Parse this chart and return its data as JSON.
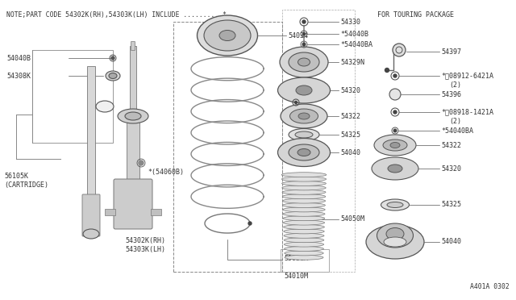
{
  "bg_color": "#ffffff",
  "line_color": "#555555",
  "text_color": "#333333",
  "note_text": "NOTE;PART CODE 54302K(RH),54303K(LH) INCLUDE ......... *",
  "touring_text": "FOR TOURING PACKAGE",
  "diagram_code": "A401A 0302"
}
